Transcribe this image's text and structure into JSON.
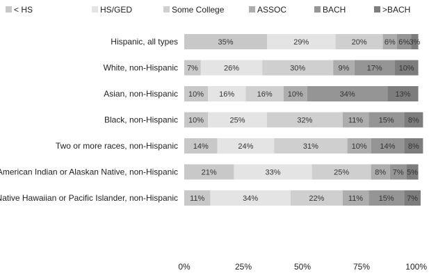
{
  "chart_data": {
    "type": "bar",
    "orientation": "horizontal",
    "stacked": true,
    "categories": [
      "Hispanic, all types",
      "White, non-Hispanic",
      "Asian, non-Hispanic",
      "Black, non-Hispanic",
      "Two or more races, non-Hispanic",
      "American Indian or Alaskan Native, non-Hispanic",
      "Native Hawaiian or Pacific Islander, non-Hispanic"
    ],
    "series": [
      {
        "name": "< HS",
        "values": [
          35,
          7,
          10,
          10,
          14,
          21,
          11
        ],
        "color": "#c8c8c8"
      },
      {
        "name": "HS/GED",
        "values": [
          29,
          26,
          16,
          25,
          24,
          33,
          34
        ],
        "color": "#e4e4e4"
      },
      {
        "name": "Some College",
        "values": [
          20,
          30,
          16,
          32,
          31,
          25,
          22
        ],
        "color": "#cfcfcf"
      },
      {
        "name": "ASSOC",
        "values": [
          6,
          9,
          10,
          11,
          10,
          8,
          11
        ],
        "color": "#adadad"
      },
      {
        "name": "BACH",
        "values": [
          6,
          17,
          34,
          15,
          14,
          7,
          15
        ],
        "color": "#959595"
      },
      {
        "name": ">BACH",
        "values": [
          3,
          10,
          13,
          8,
          8,
          5,
          7
        ],
        "color": "#7d7d7d"
      }
    ],
    "x_ticks": [
      "0%",
      "25%",
      "50%",
      "75%",
      "100%"
    ],
    "xlim": [
      0,
      100
    ],
    "legend_position": "top",
    "grid": false
  }
}
